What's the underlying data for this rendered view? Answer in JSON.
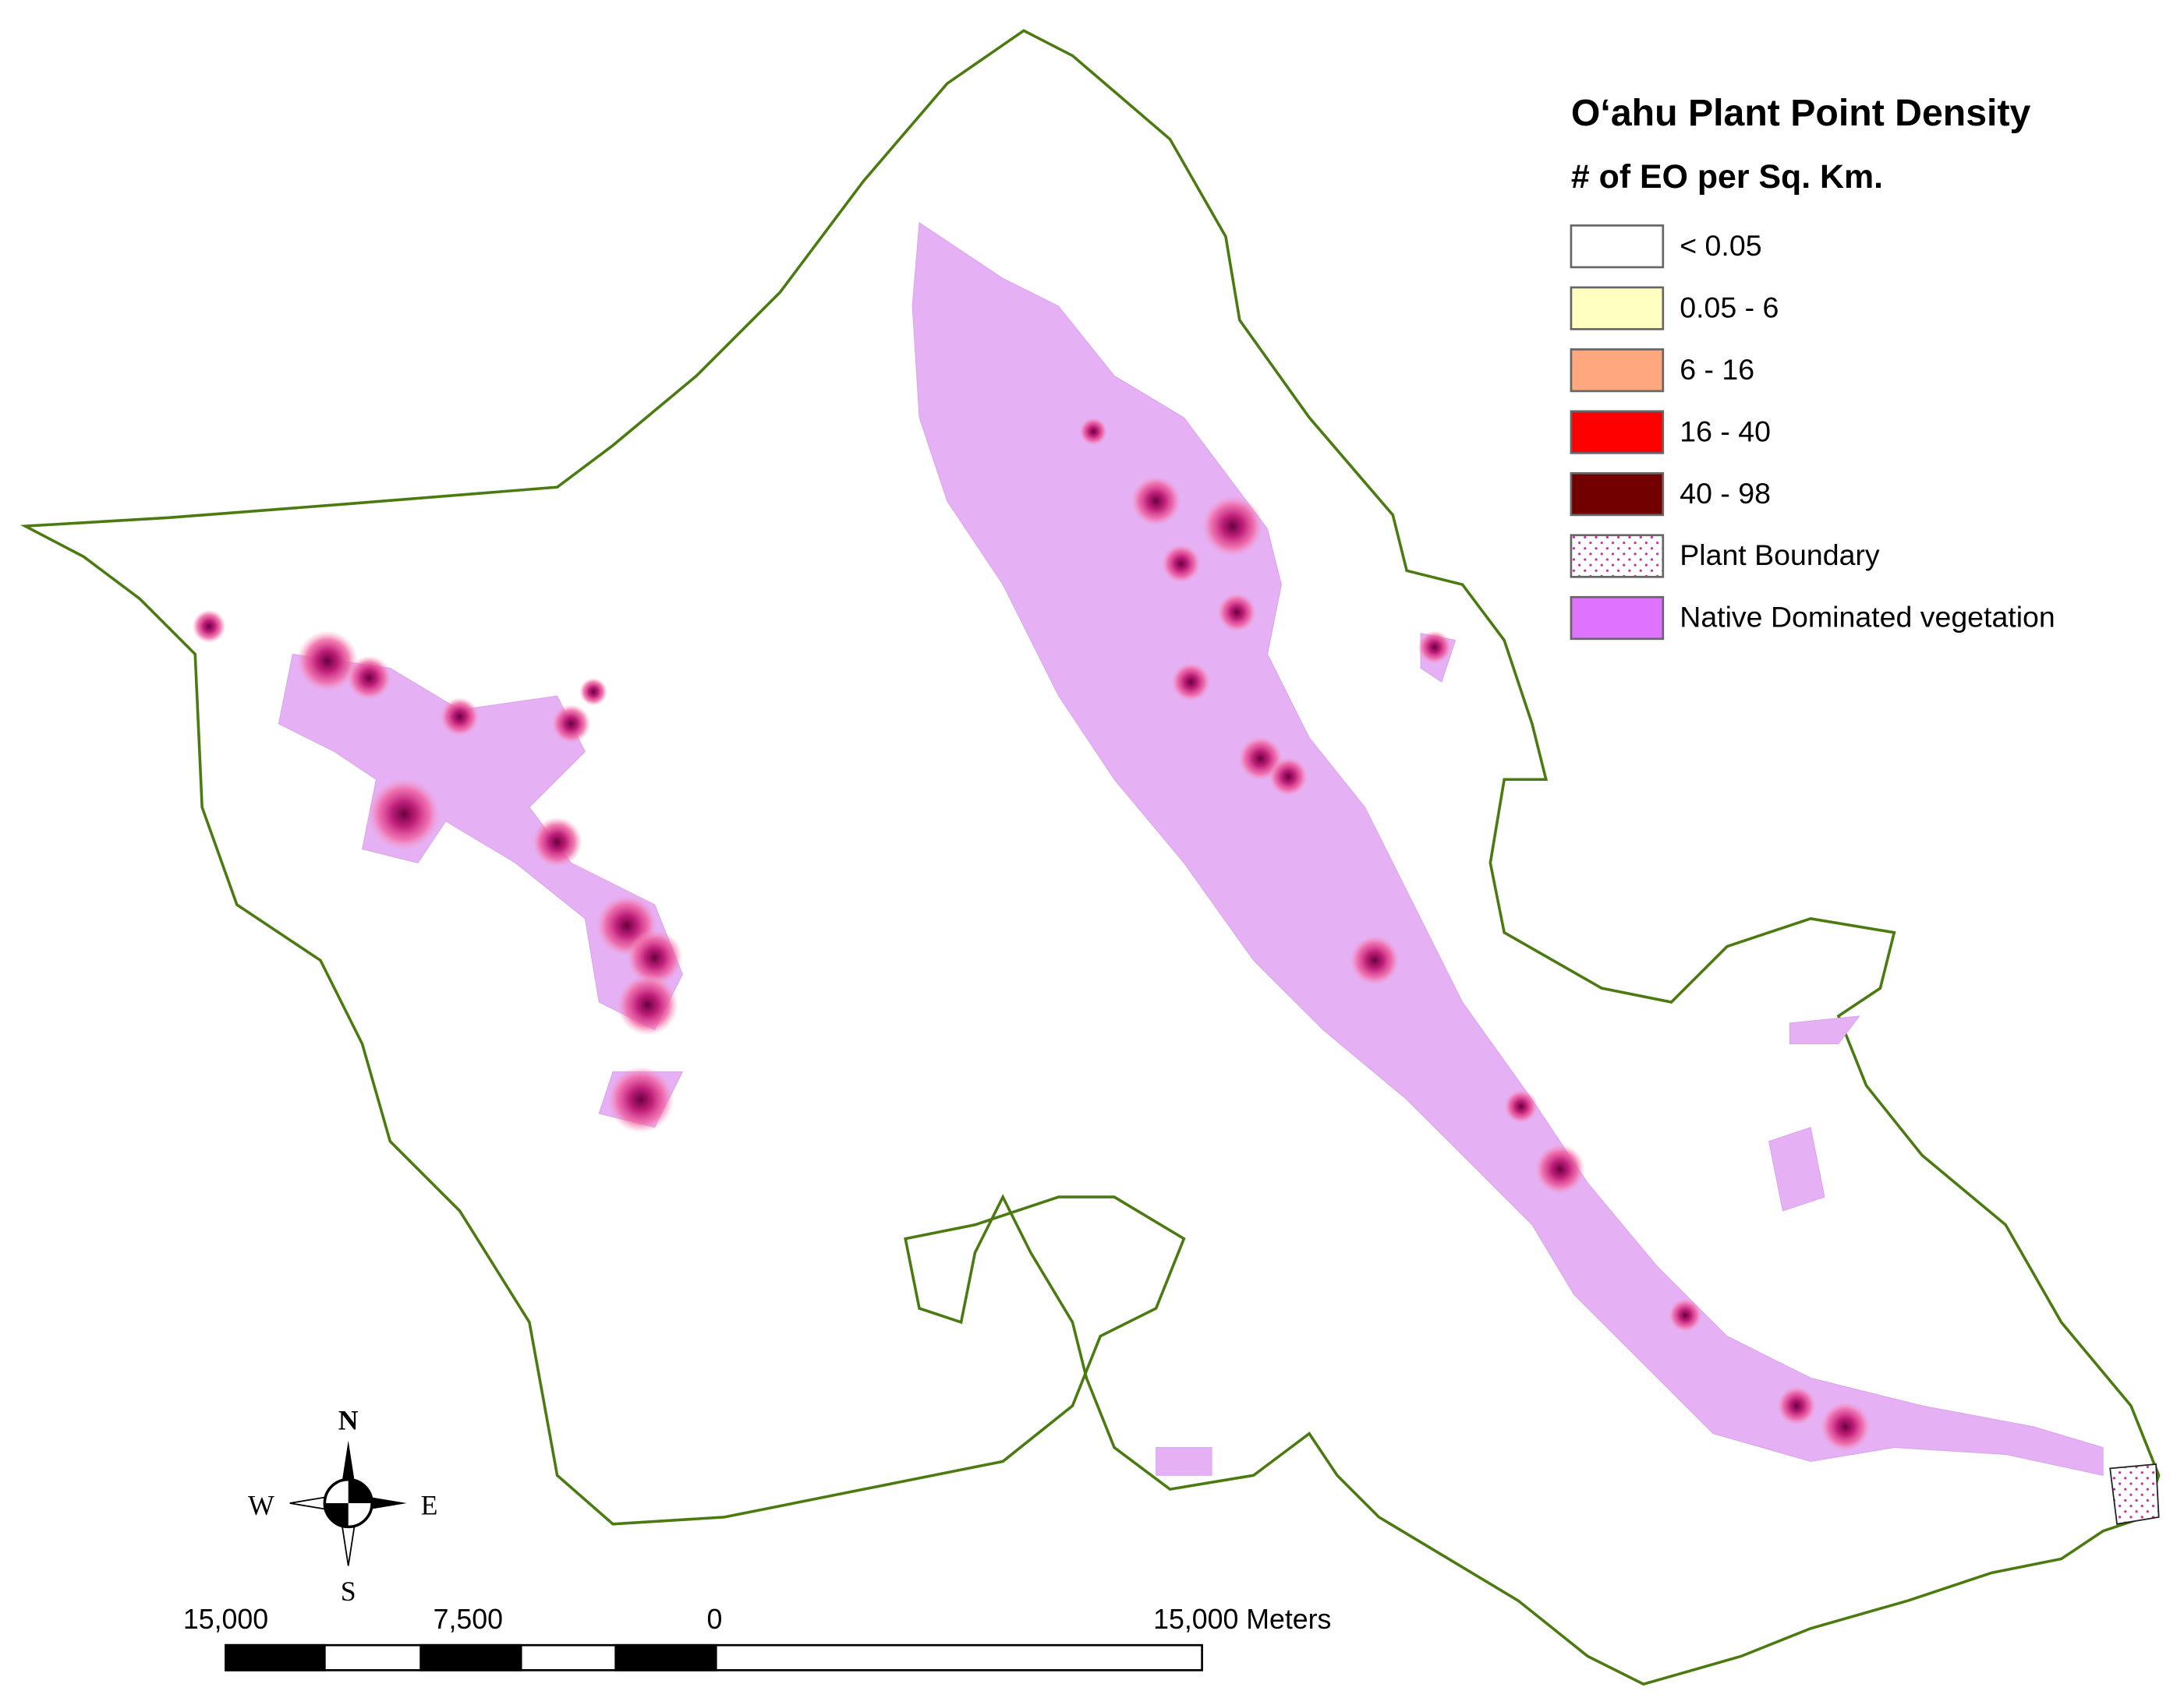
{
  "map": {
    "title": "O‘ahu Plant Point Density",
    "subtitle": "# of EO per Sq. Km.",
    "legend": [
      {
        "label": "< 0.05",
        "color": "#ffffff"
      },
      {
        "label": "0.05 - 6",
        "color": "#ffffc0"
      },
      {
        "label": "6 - 16",
        "color": "#ffa77f"
      },
      {
        "label": "16 - 40",
        "color": "#ff0000"
      },
      {
        "label": "40 - 98",
        "color": "#730000"
      },
      {
        "label": "Plant Boundary"
      },
      {
        "label": "Native Dominated vegetation",
        "color": "#df73ff"
      }
    ],
    "compass": {
      "north": "N",
      "south": "S",
      "east": "E",
      "west": "W"
    },
    "scale_bar": {
      "labels": [
        "15,000",
        "7,500",
        "0",
        "15,000 Meters"
      ]
    }
  }
}
